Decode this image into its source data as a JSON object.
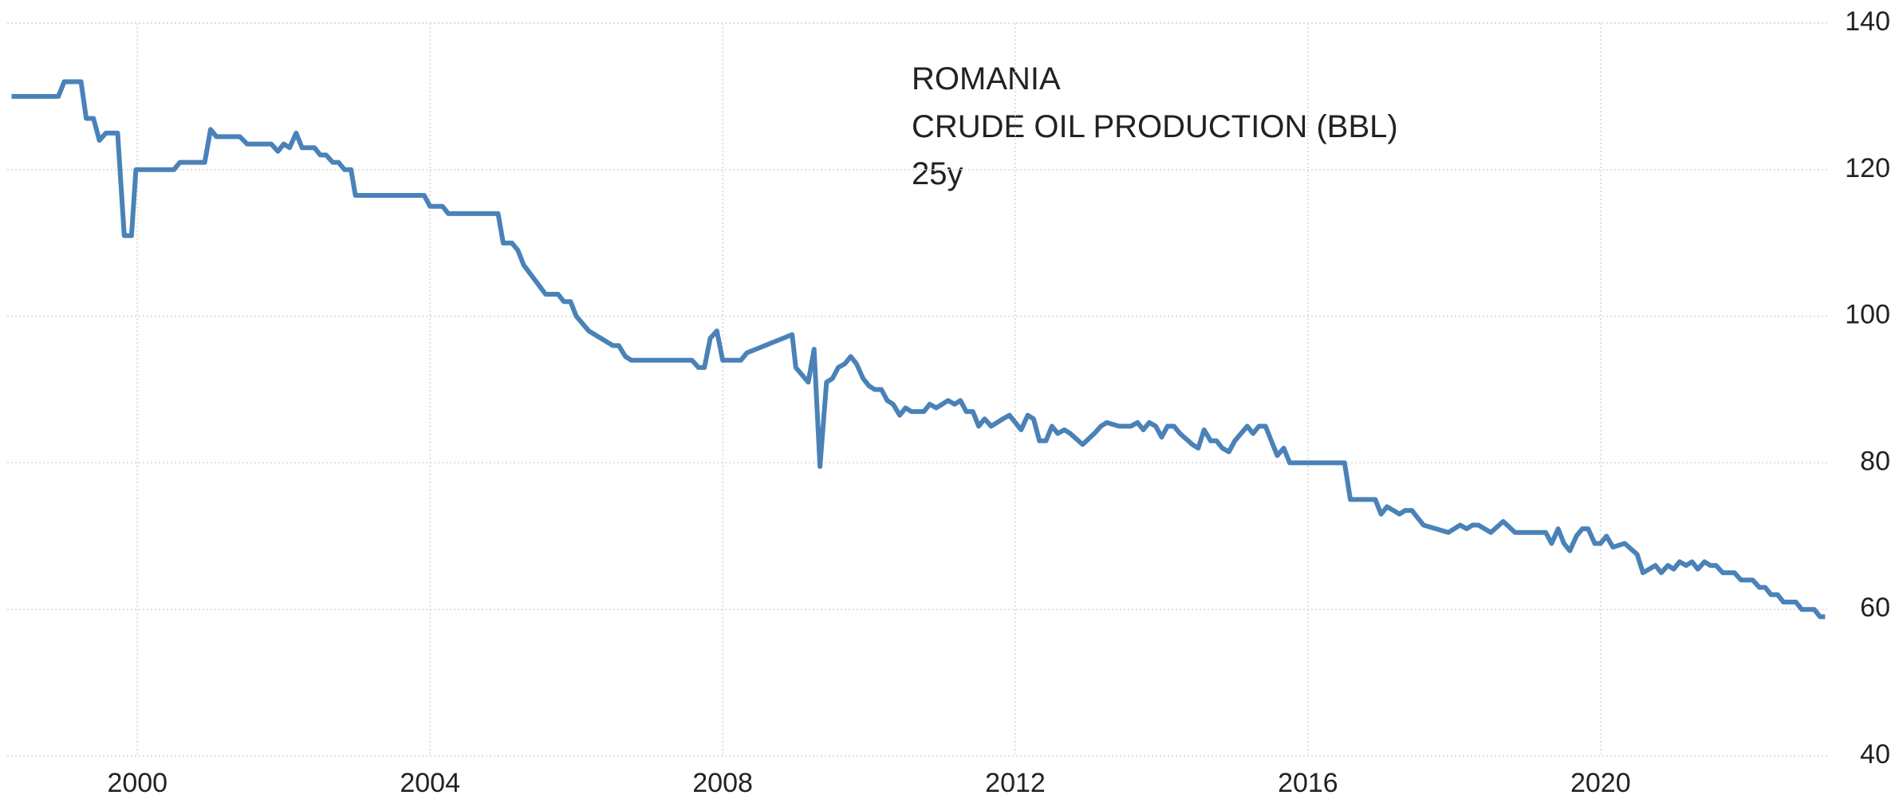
{
  "chart_data": {
    "type": "line",
    "title": "ROMANIA",
    "subtitle": "CRUDE OIL PRODUCTION (BBL)",
    "period": "25y",
    "xlim": [
      1998.22,
      2023.12
    ],
    "xticks": [
      2000,
      2004,
      2008,
      2012,
      2016,
      2020
    ],
    "ylim": [
      40,
      140
    ],
    "yticks": [
      40,
      60,
      80,
      100,
      120,
      140
    ],
    "grid": true,
    "series": [
      {
        "color": "#4a82b8",
        "x": [
          1998.28,
          1998.92,
          1999.0,
          1999.23,
          1999.3,
          1999.4,
          1999.48,
          1999.57,
          1999.73,
          1999.82,
          1999.92,
          1999.98,
          2000.5,
          2000.58,
          2000.92,
          2001.0,
          2001.08,
          2001.4,
          2001.5,
          2001.83,
          2001.92,
          2002.0,
          2002.08,
          2002.17,
          2002.25,
          2002.42,
          2002.5,
          2002.58,
          2002.67,
          2002.75,
          2002.83,
          2002.92,
          2002.98,
          2003.92,
          2004.0,
          2004.17,
          2004.25,
          2004.93,
          2005.0,
          2005.12,
          2005.2,
          2005.28,
          2005.58,
          2005.75,
          2005.83,
          2005.92,
          2006.0,
          2006.17,
          2006.5,
          2006.58,
          2006.67,
          2006.75,
          2007.58,
          2007.67,
          2007.75,
          2007.83,
          2007.92,
          2008.0,
          2008.25,
          2008.33,
          2008.95,
          2009.0,
          2009.17,
          2009.25,
          2009.33,
          2009.42,
          2009.5,
          2009.58,
          2009.67,
          2009.75,
          2009.83,
          2009.92,
          2010.0,
          2010.08,
          2010.17,
          2010.25,
          2010.33,
          2010.42,
          2010.5,
          2010.58,
          2010.75,
          2010.83,
          2010.92,
          2011.0,
          2011.08,
          2011.17,
          2011.25,
          2011.33,
          2011.42,
          2011.5,
          2011.58,
          2011.67,
          2011.75,
          2011.83,
          2011.92,
          2012.0,
          2012.08,
          2012.17,
          2012.25,
          2012.33,
          2012.42,
          2012.5,
          2012.58,
          2012.67,
          2012.75,
          2012.92,
          2013.08,
          2013.17,
          2013.25,
          2013.42,
          2013.58,
          2013.67,
          2013.75,
          2013.83,
          2013.92,
          2014.0,
          2014.08,
          2014.17,
          2014.25,
          2014.42,
          2014.5,
          2014.58,
          2014.67,
          2014.75,
          2014.83,
          2014.92,
          2015.0,
          2015.17,
          2015.25,
          2015.33,
          2015.42,
          2015.5,
          2015.58,
          2015.67,
          2015.75,
          2016.5,
          2016.58,
          2016.92,
          2017.0,
          2017.08,
          2017.17,
          2017.25,
          2017.33,
          2017.42,
          2017.58,
          2017.75,
          2017.92,
          2018.08,
          2018.17,
          2018.25,
          2018.33,
          2018.5,
          2018.67,
          2018.83,
          2019.25,
          2019.33,
          2019.42,
          2019.5,
          2019.58,
          2019.67,
          2019.75,
          2019.83,
          2019.92,
          2020.0,
          2020.08,
          2020.17,
          2020.33,
          2020.5,
          2020.58,
          2020.75,
          2020.83,
          2020.92,
          2021.0,
          2021.08,
          2021.17,
          2021.25,
          2021.33,
          2021.42,
          2021.5,
          2021.58,
          2021.67,
          2021.83,
          2021.92,
          2022.08,
          2022.17,
          2022.25,
          2022.33,
          2022.42,
          2022.5,
          2022.67,
          2022.75,
          2022.92,
          2023.0,
          2023.07
        ],
        "values": [
          130,
          130,
          132,
          132,
          127,
          127,
          124,
          125,
          125,
          111,
          111,
          120,
          120,
          121,
          121,
          125.5,
          124.5,
          124.5,
          123.5,
          123.5,
          122.5,
          123.5,
          123,
          125,
          123,
          123,
          122,
          122,
          121,
          121,
          120,
          120,
          116.5,
          116.5,
          115,
          115,
          114,
          114,
          110,
          110,
          109,
          107,
          103,
          103,
          102,
          102,
          100,
          98,
          96,
          96,
          94.5,
          94,
          94,
          93,
          93,
          97,
          98,
          94,
          94,
          95,
          97.5,
          93,
          91,
          95.5,
          79.5,
          91,
          91.5,
          93,
          93.5,
          94.5,
          93.5,
          91.5,
          90.5,
          90,
          90,
          88.5,
          88,
          86.5,
          87.5,
          87,
          87,
          88,
          87.5,
          88,
          88.5,
          88,
          88.5,
          87,
          87,
          85,
          86,
          85,
          85.5,
          86,
          86.5,
          85.5,
          84.5,
          86.5,
          86,
          83,
          83,
          85,
          84,
          84.5,
          84,
          82.5,
          84,
          85,
          85.5,
          85,
          85,
          85.5,
          84.5,
          85.5,
          85,
          83.5,
          85,
          85,
          84,
          82.5,
          82,
          84.5,
          83,
          83,
          82,
          81.5,
          83,
          85,
          84,
          85,
          85,
          83,
          81,
          82,
          80,
          80,
          75,
          75,
          73,
          74,
          73.5,
          73,
          73.5,
          73.5,
          71.5,
          71,
          70.5,
          71.5,
          71,
          71.5,
          71.5,
          70.5,
          72,
          70.5,
          70.5,
          69,
          71,
          69,
          68,
          70,
          71,
          71,
          69,
          69,
          70,
          68.5,
          69,
          67.5,
          65,
          66,
          65,
          66,
          65.5,
          66.5,
          66,
          66.5,
          65.5,
          66.5,
          66,
          66,
          65,
          65,
          64,
          64,
          63,
          63,
          62,
          62,
          61,
          61,
          60,
          60,
          59,
          59
        ]
      }
    ]
  }
}
